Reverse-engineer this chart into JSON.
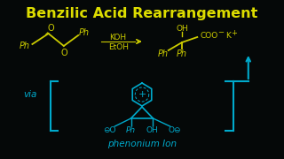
{
  "background_color": "#050808",
  "title": "Benzilic Acid Rearrangement",
  "title_color": "#DDDD00",
  "title_fontsize": 11.5,
  "reaction_color": "#CCCC00",
  "mechanism_color": "#00AACC",
  "via_text": "via",
  "phenonium_text": "phenonium Ion",
  "figsize": [
    3.2,
    1.8
  ],
  "dpi": 100
}
